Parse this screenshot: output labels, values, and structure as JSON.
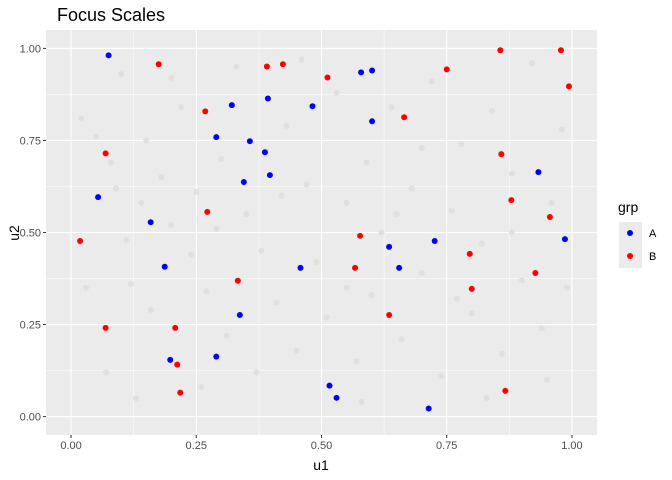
{
  "chart_data": {
    "type": "scatter",
    "title": "Focus Scales",
    "xlabel": "u1",
    "ylabel": "u2",
    "xlim": [
      -0.05,
      1.05
    ],
    "ylim": [
      -0.05,
      1.05
    ],
    "xticks": [
      0,
      0.25,
      0.5,
      0.75,
      1
    ],
    "xtick_labels": [
      "0.00",
      "0.25",
      "0.50",
      "0.75",
      "1.00"
    ],
    "yticks": [
      0,
      0.25,
      0.5,
      0.75,
      1
    ],
    "ytick_labels": [
      "0.00",
      "0.25",
      "0.50",
      "0.75",
      "1.00"
    ],
    "grid": true,
    "legend": {
      "title": "grp",
      "placement": "right"
    },
    "background_points": {
      "color": "#e0e0e0",
      "points": [
        [
          0.02,
          0.81
        ],
        [
          0.05,
          0.76
        ],
        [
          0.08,
          0.69
        ],
        [
          0.11,
          0.48
        ],
        [
          0.12,
          0.36
        ],
        [
          0.14,
          0.58
        ],
        [
          0.16,
          0.29
        ],
        [
          0.18,
          0.65
        ],
        [
          0.2,
          0.92
        ],
        [
          0.22,
          0.84
        ],
        [
          0.24,
          0.44
        ],
        [
          0.25,
          0.61
        ],
        [
          0.27,
          0.34
        ],
        [
          0.29,
          0.51
        ],
        [
          0.31,
          0.22
        ],
        [
          0.33,
          0.95
        ],
        [
          0.35,
          0.55
        ],
        [
          0.37,
          0.12
        ],
        [
          0.39,
          0.72
        ],
        [
          0.41,
          0.31
        ],
        [
          0.43,
          0.79
        ],
        [
          0.45,
          0.18
        ],
        [
          0.47,
          0.63
        ],
        [
          0.49,
          0.42
        ],
        [
          0.51,
          0.27
        ],
        [
          0.53,
          0.88
        ],
        [
          0.55,
          0.58
        ],
        [
          0.57,
          0.15
        ],
        [
          0.59,
          0.69
        ],
        [
          0.6,
          0.33
        ],
        [
          0.62,
          0.5
        ],
        [
          0.64,
          0.84
        ],
        [
          0.66,
          0.21
        ],
        [
          0.68,
          0.62
        ],
        [
          0.7,
          0.39
        ],
        [
          0.72,
          0.91
        ],
        [
          0.74,
          0.11
        ],
        [
          0.76,
          0.56
        ],
        [
          0.78,
          0.74
        ],
        [
          0.8,
          0.28
        ],
        [
          0.82,
          0.47
        ],
        [
          0.84,
          0.83
        ],
        [
          0.86,
          0.17
        ],
        [
          0.88,
          0.66
        ],
        [
          0.9,
          0.37
        ],
        [
          0.92,
          0.96
        ],
        [
          0.94,
          0.24
        ],
        [
          0.96,
          0.58
        ],
        [
          0.98,
          0.78
        ],
        [
          0.99,
          0.35
        ],
        [
          0.03,
          0.35
        ],
        [
          0.07,
          0.12
        ],
        [
          0.13,
          0.05
        ],
        [
          0.1,
          0.93
        ],
        [
          0.26,
          0.08
        ],
        [
          0.46,
          0.97
        ],
        [
          0.58,
          0.04
        ],
        [
          0.7,
          0.73
        ],
        [
          0.83,
          0.05
        ],
        [
          0.95,
          0.1
        ],
        [
          0.38,
          0.45
        ],
        [
          0.15,
          0.75
        ],
        [
          0.65,
          0.55
        ],
        [
          0.42,
          0.6
        ],
        [
          0.77,
          0.32
        ],
        [
          0.3,
          0.7
        ],
        [
          0.55,
          0.35
        ],
        [
          0.88,
          0.5
        ],
        [
          0.2,
          0.52
        ],
        [
          0.09,
          0.62
        ]
      ]
    },
    "series": [
      {
        "name": "A",
        "color": "#0000ff",
        "points": [
          [
            0.075,
            0.981
          ],
          [
            0.321,
            0.846
          ],
          [
            0.393,
            0.864
          ],
          [
            0.357,
            0.748
          ],
          [
            0.29,
            0.759
          ],
          [
            0.387,
            0.718
          ],
          [
            0.345,
            0.637
          ],
          [
            0.397,
            0.656
          ],
          [
            0.482,
            0.843
          ],
          [
            0.579,
            0.935
          ],
          [
            0.601,
            0.94
          ],
          [
            0.601,
            0.802
          ],
          [
            0.054,
            0.596
          ],
          [
            0.159,
            0.528
          ],
          [
            0.187,
            0.407
          ],
          [
            0.458,
            0.404
          ],
          [
            0.635,
            0.461
          ],
          [
            0.655,
            0.404
          ],
          [
            0.726,
            0.477
          ],
          [
            0.933,
            0.664
          ],
          [
            0.986,
            0.482
          ],
          [
            0.337,
            0.276
          ],
          [
            0.198,
            0.154
          ],
          [
            0.29,
            0.163
          ],
          [
            0.516,
            0.084
          ],
          [
            0.53,
            0.051
          ],
          [
            0.714,
            0.022
          ]
        ]
      },
      {
        "name": "B",
        "color": "#ff0000",
        "points": [
          [
            0.175,
            0.957
          ],
          [
            0.391,
            0.951
          ],
          [
            0.423,
            0.957
          ],
          [
            0.512,
            0.921
          ],
          [
            0.75,
            0.943
          ],
          [
            0.857,
            0.995
          ],
          [
            0.978,
            0.995
          ],
          [
            0.994,
            0.897
          ],
          [
            0.268,
            0.829
          ],
          [
            0.665,
            0.813
          ],
          [
            0.069,
            0.715
          ],
          [
            0.859,
            0.713
          ],
          [
            0.272,
            0.556
          ],
          [
            0.879,
            0.588
          ],
          [
            0.956,
            0.542
          ],
          [
            0.018,
            0.477
          ],
          [
            0.577,
            0.491
          ],
          [
            0.567,
            0.404
          ],
          [
            0.796,
            0.442
          ],
          [
            0.8,
            0.347
          ],
          [
            0.927,
            0.39
          ],
          [
            0.333,
            0.369
          ],
          [
            0.635,
            0.276
          ],
          [
            0.069,
            0.241
          ],
          [
            0.208,
            0.241
          ],
          [
            0.212,
            0.141
          ],
          [
            0.218,
            0.065
          ],
          [
            0.867,
            0.07
          ]
        ]
      }
    ]
  }
}
